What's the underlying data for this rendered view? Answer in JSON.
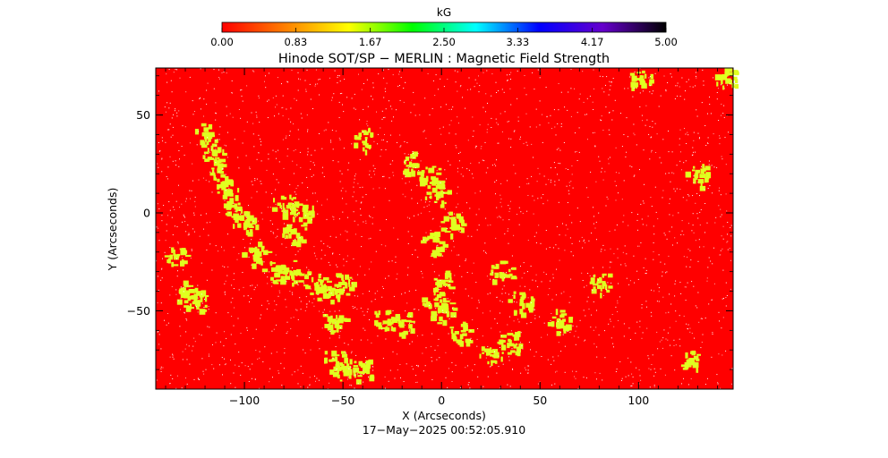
{
  "chart_data": {
    "type": "heatmap",
    "title": "Hinode SOT/SP − MERLIN : Magnetic Field Strength",
    "xlabel": "X (Arcseconds)",
    "ylabel": "Y (Arcseconds)",
    "xlim": [
      -145,
      148
    ],
    "ylim": [
      -90,
      74
    ],
    "x_ticks": [
      -100,
      -50,
      0,
      50,
      100
    ],
    "x_tick_labels": [
      "−100",
      "−50",
      "0",
      "50",
      "100"
    ],
    "y_ticks": [
      -50,
      0,
      50
    ],
    "y_tick_labels": [
      "−50",
      "0",
      "50"
    ],
    "timestamp": "17−May−2025 00:52:05.910",
    "colorbar": {
      "label": "kG",
      "range": [
        0.0,
        5.0
      ],
      "tick_values": [
        0.0,
        0.83,
        1.67,
        2.5,
        3.33,
        4.17,
        5.0
      ],
      "tick_labels": [
        "0.00",
        "0.83",
        "1.67",
        "2.50",
        "3.33",
        "4.17",
        "5.00"
      ],
      "colormap": [
        "#ff0000",
        "#ff8000",
        "#ffff00",
        "#00ff00",
        "#00ffff",
        "#0000ff",
        "#6600cc",
        "#000000"
      ]
    },
    "field_background_kG": 0.0,
    "network_patch_kG": 1.4,
    "network_patch_color": "#e0ff20",
    "network_regions": [
      {
        "x": -115,
        "y": 30
      },
      {
        "x": -112,
        "y": 20
      },
      {
        "x": -108,
        "y": 10
      },
      {
        "x": -105,
        "y": 0
      },
      {
        "x": -100,
        "y": -5
      },
      {
        "x": -120,
        "y": 40
      },
      {
        "x": -95,
        "y": -20
      },
      {
        "x": -85,
        "y": -30
      },
      {
        "x": -75,
        "y": -30
      },
      {
        "x": -65,
        "y": -35
      },
      {
        "x": -58,
        "y": -40
      },
      {
        "x": -50,
        "y": -35
      },
      {
        "x": -55,
        "y": -55
      },
      {
        "x": -55,
        "y": -75
      },
      {
        "x": -50,
        "y": -80
      },
      {
        "x": -40,
        "y": -80
      },
      {
        "x": -130,
        "y": -40
      },
      {
        "x": -135,
        "y": -20
      },
      {
        "x": -125,
        "y": -45
      },
      {
        "x": -70,
        "y": 0
      },
      {
        "x": -75,
        "y": -10
      },
      {
        "x": -80,
        "y": 5
      },
      {
        "x": -40,
        "y": 38
      },
      {
        "x": -15,
        "y": 25
      },
      {
        "x": -5,
        "y": 18
      },
      {
        "x": -3,
        "y": 10
      },
      {
        "x": 5,
        "y": -5
      },
      {
        "x": -5,
        "y": -15
      },
      {
        "x": 0,
        "y": -35
      },
      {
        "x": -5,
        "y": -45
      },
      {
        "x": 0,
        "y": -50
      },
      {
        "x": -20,
        "y": -55
      },
      {
        "x": -30,
        "y": -55
      },
      {
        "x": 10,
        "y": -60
      },
      {
        "x": 25,
        "y": -70
      },
      {
        "x": 35,
        "y": -65
      },
      {
        "x": 30,
        "y": -30
      },
      {
        "x": 40,
        "y": -45
      },
      {
        "x": 60,
        "y": -55
      },
      {
        "x": 130,
        "y": 20
      },
      {
        "x": 125,
        "y": -75
      },
      {
        "x": 145,
        "y": 70
      },
      {
        "x": 100,
        "y": 70
      },
      {
        "x": 80,
        "y": -35
      }
    ]
  }
}
